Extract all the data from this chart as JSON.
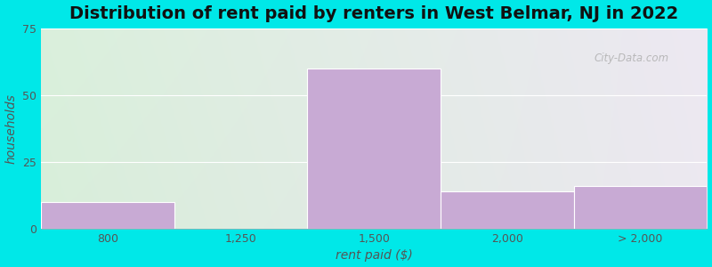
{
  "title": "Distribution of rent paid by renters in West Belmar, NJ in 2022",
  "xlabel": "rent paid ($)",
  "ylabel": "households",
  "categories": [
    "800",
    "1,250",
    "1,500",
    "2,000",
    "> 2,000"
  ],
  "values": [
    10,
    0,
    60,
    14,
    16
  ],
  "bar_color": "#c8aad4",
  "ylim": [
    0,
    75
  ],
  "yticks": [
    0,
    25,
    50,
    75
  ],
  "background_outer": "#00e8e8",
  "bg_color_topleft": "#daf0dc",
  "bg_color_topright": "#ede8f2",
  "bg_color_bottomleft": "#d8eeda",
  "bg_color_bottomright": "#ece8f0",
  "title_fontsize": 14,
  "axis_label_fontsize": 10,
  "tick_fontsize": 9,
  "watermark": "City-Data.com"
}
